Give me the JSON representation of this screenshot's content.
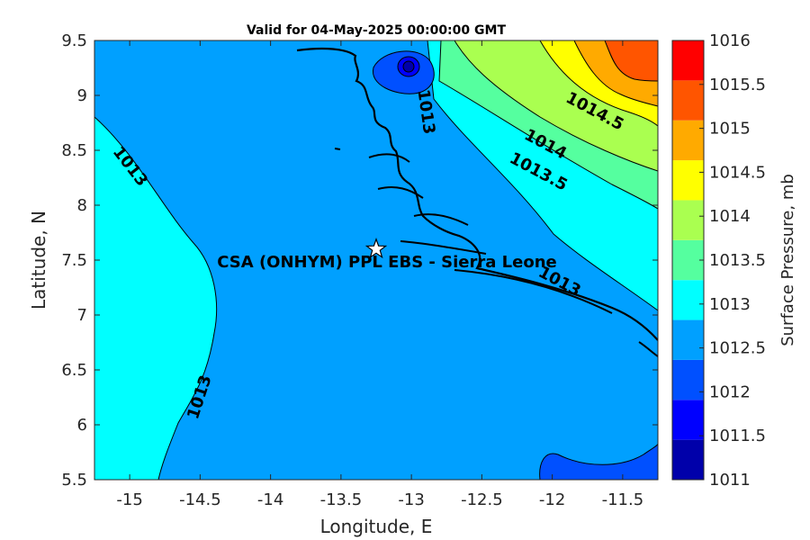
{
  "chart_data": {
    "type": "contour_map",
    "title": "Valid for 04-May-2025 00:00:00 GMT",
    "xlabel": "Longitude, E",
    "ylabel": "Latitude, N",
    "xlim": [
      -15.25,
      -11.25
    ],
    "ylim": [
      5.5,
      9.5
    ],
    "x_ticks": [
      "-15",
      "-14.5",
      "-14",
      "-13.5",
      "-13",
      "-12.5",
      "-12",
      "-11.5"
    ],
    "y_ticks": [
      "5.5",
      "6",
      "6.5",
      "7",
      "7.5",
      "8",
      "8.5",
      "9",
      "9.5"
    ],
    "colorbar": {
      "label": "Surface Pressure, mb",
      "levels": [
        "1011",
        "1011.5",
        "1012",
        "1012.5",
        "1013",
        "1013.5",
        "1014",
        "1014.5",
        "1015",
        "1015.5",
        "1016"
      ],
      "colors": [
        "#0000aa",
        "#0000ff",
        "#0050ff",
        "#00a0ff",
        "#00ffff",
        "#55ff9f",
        "#aaff50",
        "#ffff00",
        "#ffaa00",
        "#ff5500",
        "#ff0000"
      ]
    },
    "contour_labels": [
      {
        "text": "1013",
        "lon": -15.0,
        "lat": 8.35,
        "angle": 52
      },
      {
        "text": "1013",
        "lon": -14.5,
        "lat": 6.25,
        "angle": -72
      },
      {
        "text": "1013",
        "lon": -12.9,
        "lat": 8.85,
        "angle": 82
      },
      {
        "text": "1013",
        "lon": -11.95,
        "lat": 7.3,
        "angle": 28
      },
      {
        "text": "1013.5",
        "lon": -12.1,
        "lat": 8.3,
        "angle": 28
      },
      {
        "text": "1014",
        "lon": -12.05,
        "lat": 8.55,
        "angle": 28
      },
      {
        "text": "1014.5",
        "lon": -11.7,
        "lat": 8.85,
        "angle": 28
      }
    ],
    "site": {
      "label": "CSA (ONHYM) PPL EBS  - Sierra Leone",
      "lon": -13.25,
      "lat": 7.6
    }
  }
}
